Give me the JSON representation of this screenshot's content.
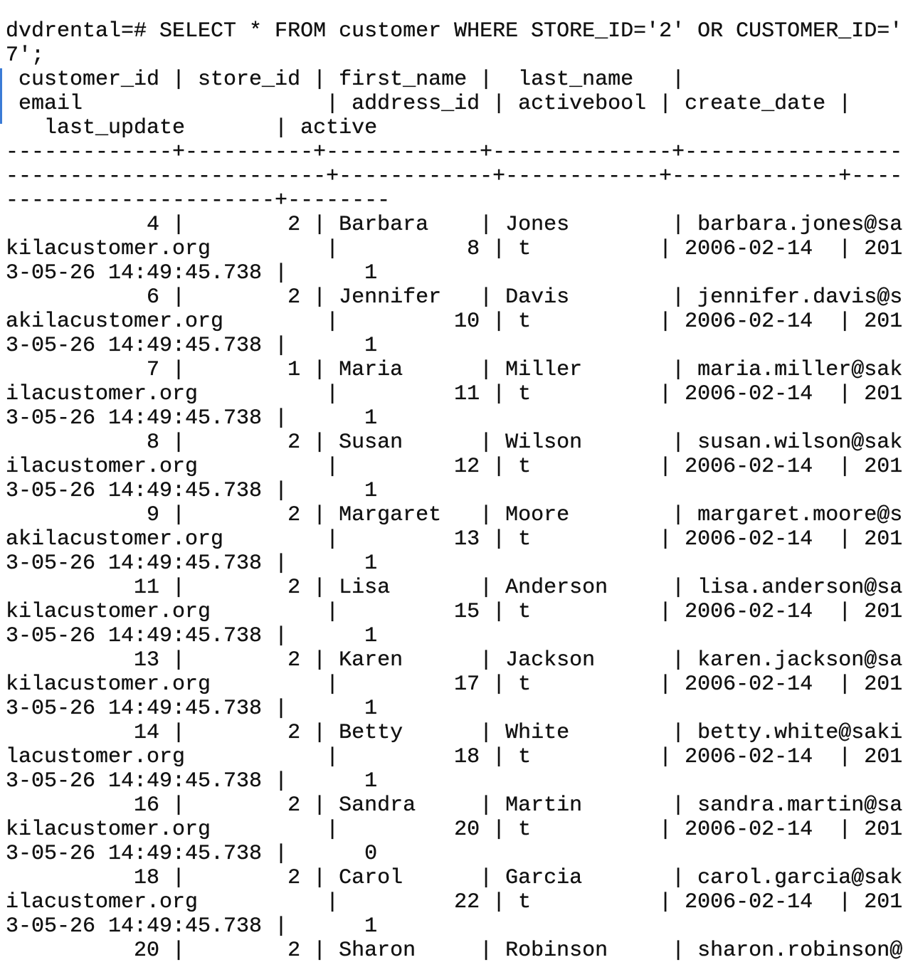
{
  "command": [
    "dvdrental=# SELECT * FROM customer WHERE STORE_ID='2' OR CUSTOMER_ID='",
    "7';"
  ],
  "header": [
    " customer_id | store_id | first_name |  last_name   |",
    " email                   | address_id | activebool | create_date |",
    "   last_update       | active"
  ],
  "separator": [
    "-------------+----------+------------+--------------+-----------------",
    "-------------------------+------------+------------+-------------+----",
    "---------------------+--------"
  ],
  "rows": [
    [
      "           4 |        2 | Barbara    | Jones        | barbara.jones@sa",
      "kilacustomer.org         |          8 | t          | 2006-02-14  | 201",
      "3-05-26 14:49:45.738 |      1"
    ],
    [
      "           6 |        2 | Jennifer   | Davis        | jennifer.davis@s",
      "akilacustomer.org        |         10 | t          | 2006-02-14  | 201",
      "3-05-26 14:49:45.738 |      1"
    ],
    [
      "           7 |        1 | Maria      | Miller       | maria.miller@sak",
      "ilacustomer.org          |         11 | t          | 2006-02-14  | 201",
      "3-05-26 14:49:45.738 |      1"
    ],
    [
      "           8 |        2 | Susan      | Wilson       | susan.wilson@sak",
      "ilacustomer.org          |         12 | t          | 2006-02-14  | 201",
      "3-05-26 14:49:45.738 |      1"
    ],
    [
      "           9 |        2 | Margaret   | Moore        | margaret.moore@s",
      "akilacustomer.org        |         13 | t          | 2006-02-14  | 201",
      "3-05-26 14:49:45.738 |      1"
    ],
    [
      "          11 |        2 | Lisa       | Anderson     | lisa.anderson@sa",
      "kilacustomer.org         |         15 | t          | 2006-02-14  | 201",
      "3-05-26 14:49:45.738 |      1"
    ],
    [
      "          13 |        2 | Karen      | Jackson      | karen.jackson@sa",
      "kilacustomer.org         |         17 | t          | 2006-02-14  | 201",
      "3-05-26 14:49:45.738 |      1"
    ],
    [
      "          14 |        2 | Betty      | White        | betty.white@saki",
      "lacustomer.org           |         18 | t          | 2006-02-14  | 201",
      "3-05-26 14:49:45.738 |      1"
    ],
    [
      "          16 |        2 | Sandra     | Martin       | sandra.martin@sa",
      "kilacustomer.org         |         20 | t          | 2006-02-14  | 201",
      "3-05-26 14:49:45.738 |      0"
    ],
    [
      "          18 |        2 | Carol      | Garcia       | carol.garcia@sak",
      "ilacustomer.org          |         22 | t          | 2006-02-14  | 201",
      "3-05-26 14:49:45.738 |      1"
    ],
    [
      "          20 |        2 | Sharon     | Robinson     | sharon.robinson@"
    ]
  ]
}
